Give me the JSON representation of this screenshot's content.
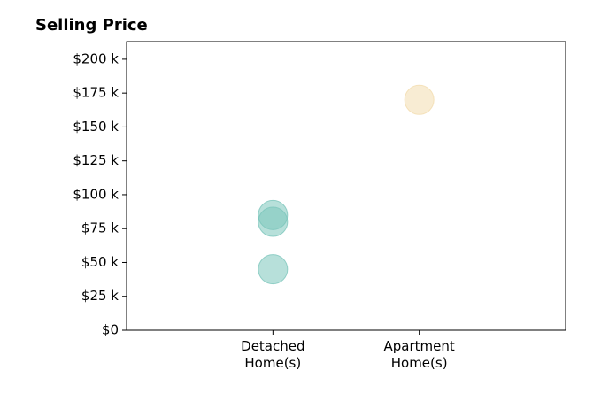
{
  "chart_data": {
    "type": "scatter",
    "title": "Selling Price",
    "categories": [
      "Detached Home(s)",
      "Apartment Home(s)"
    ],
    "series": [
      {
        "color": "#7cc6bc",
        "values": [
          45000,
          null
        ]
      },
      {
        "color": "#7cc6bc",
        "values": [
          80000,
          null
        ]
      },
      {
        "color": "#7cc6bc",
        "values": [
          85000,
          null
        ]
      },
      {
        "color": "#f3dcae",
        "values": [
          null,
          170000
        ]
      }
    ],
    "ylim": [
      0,
      213000
    ],
    "yticks": [
      {
        "value": 0,
        "label": "$0"
      },
      {
        "value": 25000,
        "label": "$25 k"
      },
      {
        "value": 50000,
        "label": "$50 k"
      },
      {
        "value": 75000,
        "label": "$75 k"
      },
      {
        "value": 100000,
        "label": "$100 k"
      },
      {
        "value": 125000,
        "label": "$125 k"
      },
      {
        "value": 150000,
        "label": "$150 k"
      },
      {
        "value": 175000,
        "label": "$175 k"
      },
      {
        "value": 200000,
        "label": "$200 k"
      }
    ],
    "grid": false
  }
}
